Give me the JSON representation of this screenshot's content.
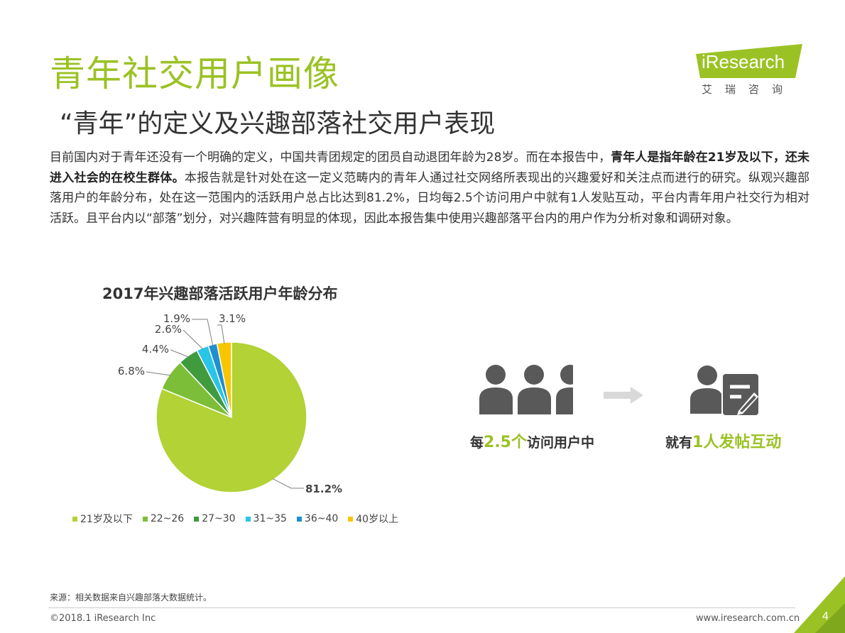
{
  "header": {
    "title": "青年社交用户画像",
    "subtitle": "“青年”的定义及兴趣部落社交用户表现"
  },
  "logo": {
    "text": "iResearch",
    "subtext": "艾瑞咨询"
  },
  "paragraph": {
    "part1": "目前国内对于青年还没有一个明确的定义，中国共青团规定的团员自动退团年龄为28岁。而在本报告中，",
    "bold": "青年人是指年龄在21岁及以下，还未进入社会的在校生群体。",
    "part2": "本报告就是针对处在这一定义范畴内的青年人通过社交网络所表现出的兴趣爱好和关注点而进行的研究。纵观兴趣部落用户的年龄分布，处在这一范围内的活跃用户总占比达到81.2%，日均每2.5个访问用户中就有1人发贴互动，平台内青年用户社交行为相对活跃。且平台内以“部落”划分，对兴趣阵营有明显的体现，因此本报告集中使用兴趣部落平台内的用户作为分析对象和调研对象。"
  },
  "chart_data": {
    "type": "pie",
    "title": "2017年兴趣部落活跃用户年龄分布",
    "categories": [
      "21岁及以下",
      "22~26",
      "27~30",
      "31~35",
      "36~40",
      "40岁以上"
    ],
    "values": [
      81.2,
      6.8,
      4.4,
      2.6,
      1.9,
      3.1
    ],
    "labels": [
      "81.2%",
      "6.8%",
      "4.4%",
      "2.6%",
      "1.9%",
      "3.1%"
    ],
    "colors": [
      "#b2d235",
      "#7dbe38",
      "#3f9b3e",
      "#29c5e6",
      "#1f8fd0",
      "#f7c600"
    ],
    "legend_position": "bottom"
  },
  "stat": {
    "left_pre": "每",
    "left_hl": "2.5个",
    "left_post": "访问用户中",
    "right_pre": "就有",
    "right_hl": "1人发帖互动"
  },
  "footer": {
    "source": "来源：相关数据来自兴趣部落大数据统计。",
    "copyright": "©2018.1 iResearch Inc",
    "website": "www.iresearch.com.cn",
    "page": "4"
  }
}
